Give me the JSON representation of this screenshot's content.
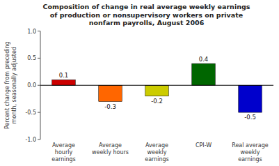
{
  "chart_data": {
    "type": "bar",
    "title": "Composition of change in real average weekly earnings\nof production or nonsupervisory workers on private\nnonfarm payrolls, August 2006",
    "categories": [
      "Average\nhourly\nearnings",
      "Average\nweekly hours",
      "Average\nweekly\nearnings",
      "CPI-W",
      "Real average\nweekly\nearnings"
    ],
    "values": [
      0.1,
      -0.3,
      -0.2,
      0.4,
      -0.5
    ],
    "colors": [
      "#cc0000",
      "#ff6600",
      "#cccc00",
      "#006600",
      "#0000cc"
    ],
    "ylabel": "Percent change from preceding\nmonth, seasonally adjusted",
    "ylim": [
      -1.0,
      1.0
    ],
    "yticks": [
      {
        "value": -1.0,
        "label": "-1.0"
      },
      -0.5,
      {
        "value": 0.0,
        "label": "0.0"
      },
      0.5,
      {
        "value": 1.0,
        "label": "1.0"
      }
    ],
    "grid": false,
    "data_labels": true
  }
}
